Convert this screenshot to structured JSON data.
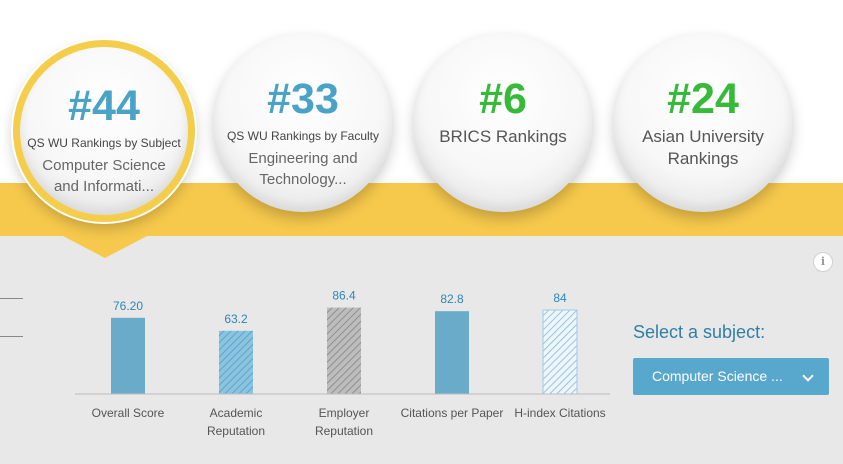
{
  "badges": [
    {
      "rank": "#44",
      "label": "QS WU Rankings by Subject",
      "subject": "Computer Science and Informati...",
      "active": true,
      "rank_color": "#4aa3c6"
    },
    {
      "rank": "#33",
      "label": "QS WU Rankings by Faculty",
      "subject": "Engineering and Technology...",
      "active": false,
      "rank_color": "#4aa3c6"
    },
    {
      "rank": "#6",
      "label": "",
      "subject": "BRICS Rankings",
      "active": false,
      "rank_color": "#37b93a"
    },
    {
      "rank": "#24",
      "label": "",
      "subject": "Asian University Rankings",
      "active": false,
      "rank_color": "#37b93a"
    }
  ],
  "colors": {
    "band": "#f6c84c",
    "panel": "#e8e8e8",
    "bar": "#6aabc9",
    "value_text": "#2f86b5"
  },
  "selector": {
    "heading": "Select a subject:",
    "value": "Computer Science ...",
    "icon": "chevron-down-icon"
  },
  "info": {
    "icon": "info-icon",
    "glyph": "i"
  },
  "chart_data": {
    "type": "bar",
    "categories": [
      "Overall Score",
      "Academic Reputation",
      "Employer Reputation",
      "Citations per Paper",
      "H-index Citations"
    ],
    "values": [
      76.2,
      63.2,
      86.4,
      82.8,
      84
    ],
    "value_labels": [
      "76.20",
      "63.2",
      "86.4",
      "82.8",
      "84"
    ],
    "patterns": [
      "solid",
      "hatch-blue",
      "hatch-grey",
      "solid",
      "hatch-blue-light"
    ],
    "ylim": [
      0,
      100
    ],
    "grid": false
  }
}
